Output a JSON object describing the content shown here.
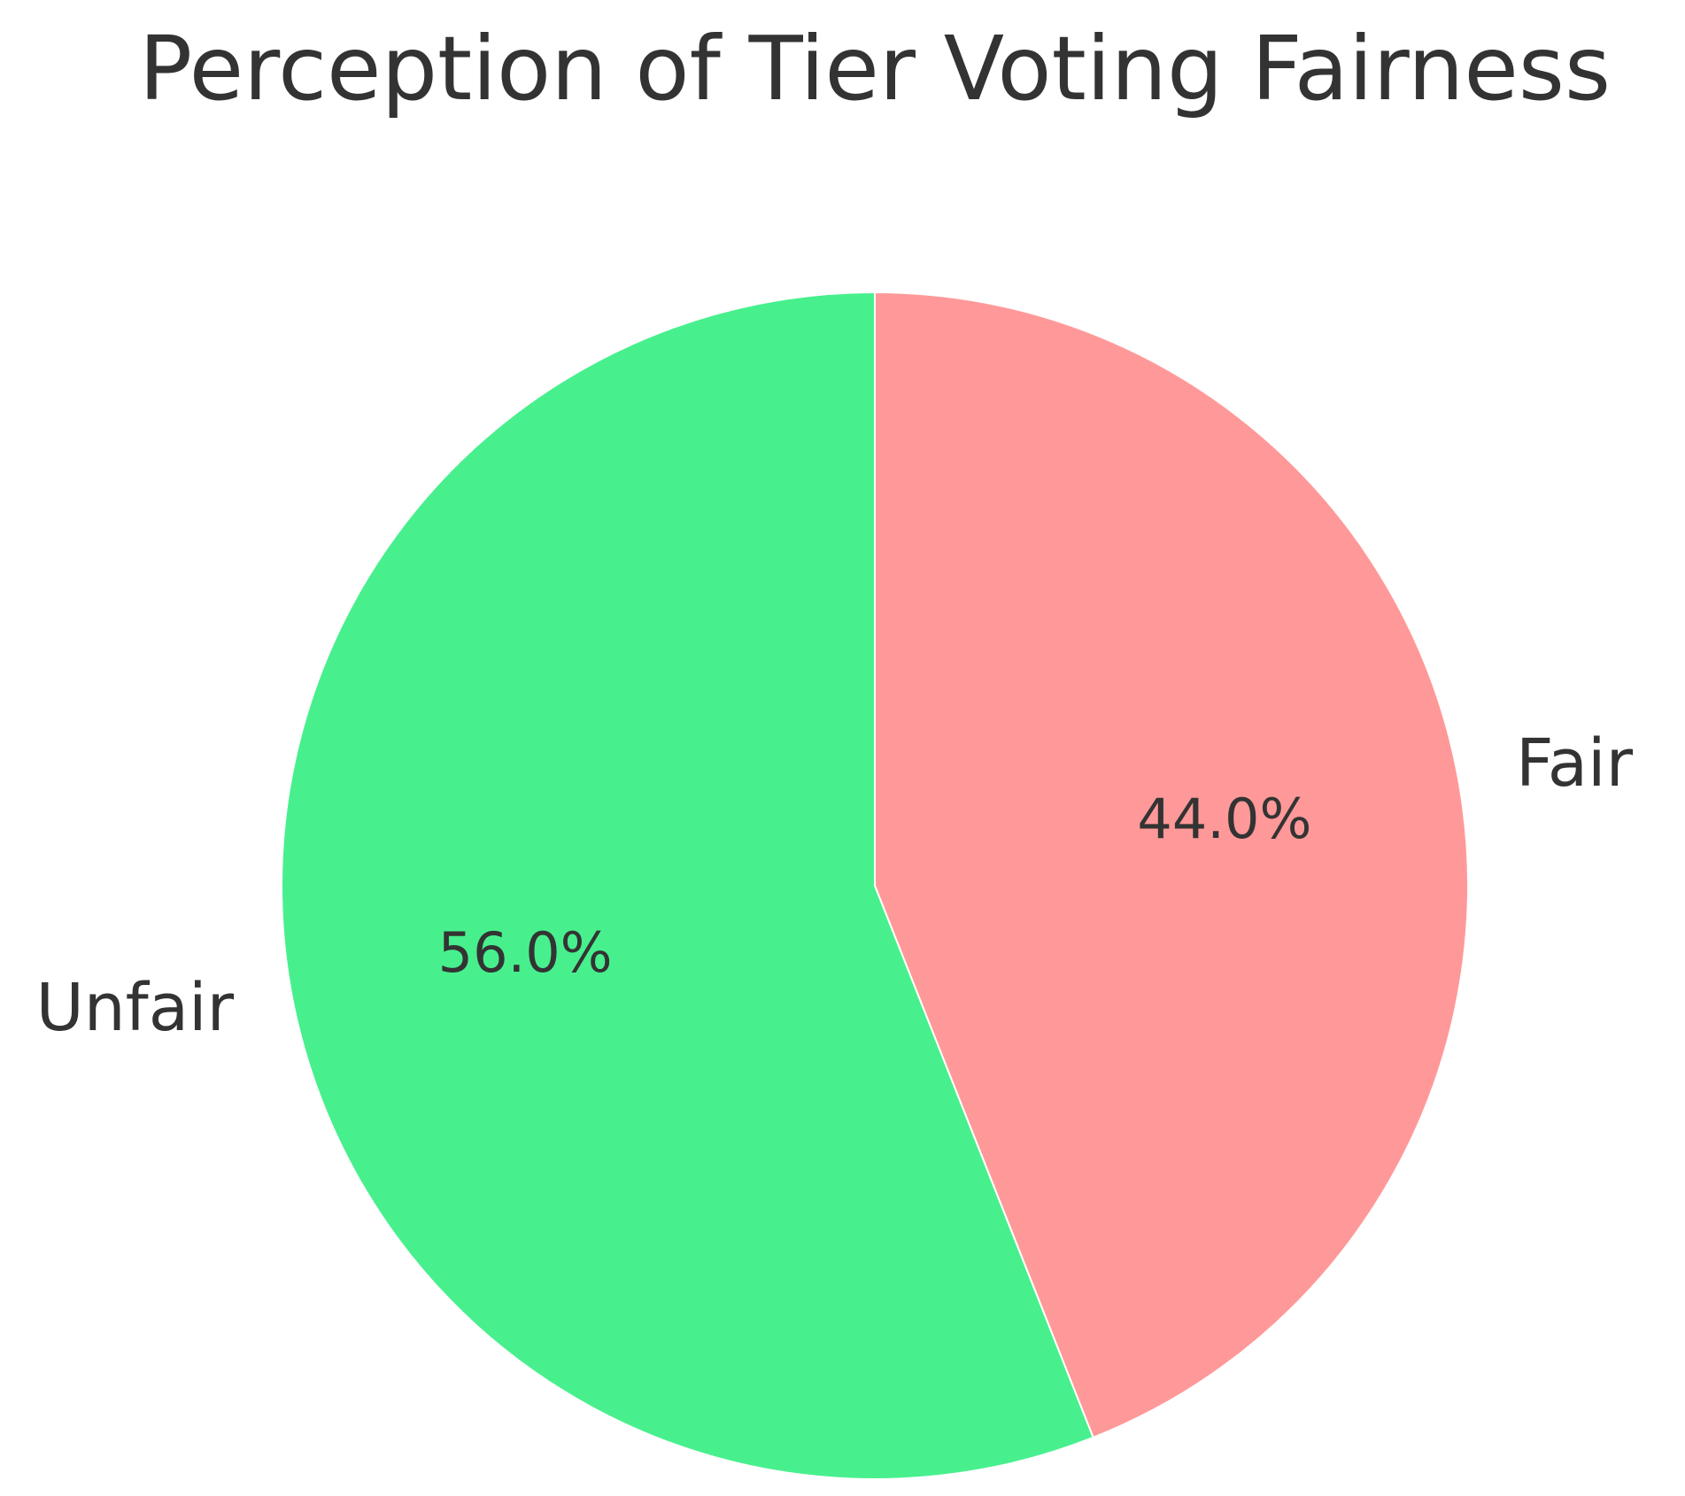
{
  "chart_data": {
    "type": "pie",
    "title": "Perception of Tier Voting Fairness",
    "slices": [
      {
        "label": "Fair",
        "value": 44.0,
        "display": "44.0%",
        "color": "#ff9999"
      },
      {
        "label": "Unfair",
        "value": 56.0,
        "display": "56.0%",
        "color": "#47f08d"
      }
    ],
    "start_angle_deg": 90,
    "direction": "clockwise",
    "legend": "none"
  }
}
